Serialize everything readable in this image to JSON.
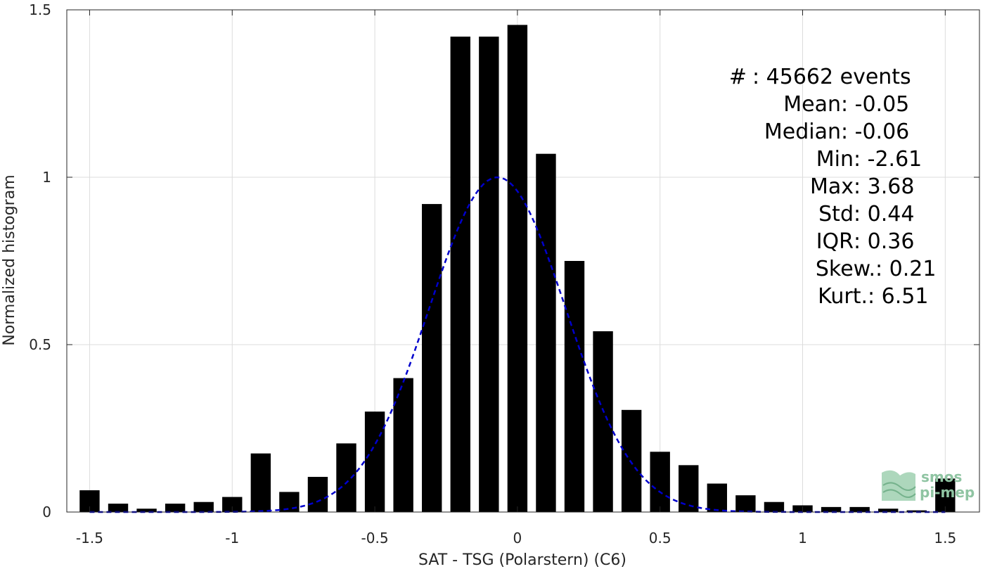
{
  "chart_data": {
    "type": "bar",
    "xlabel": "SAT - TSG (Polarstern) (C6)",
    "ylabel": "Normalized histogram",
    "xlim": [
      -1.58,
      1.62
    ],
    "ylim": [
      0,
      1.5
    ],
    "xticks": [
      -1.5,
      -1,
      -0.5,
      0,
      0.5,
      1,
      1.5
    ],
    "xtick_labels": [
      "-1.5",
      "-1",
      "-0.5",
      "0",
      "0.5",
      "1",
      "1.5"
    ],
    "yticks": [
      0,
      0.5,
      1,
      1.5
    ],
    "ytick_labels": [
      "0",
      "0.5",
      "1",
      "1.5"
    ],
    "grid": true,
    "bar_width": 0.07,
    "bar_color": "#000000",
    "x": [
      -1.5,
      -1.4,
      -1.3,
      -1.2,
      -1.1,
      -1.0,
      -0.9,
      -0.8,
      -0.7,
      -0.6,
      -0.5,
      -0.4,
      -0.3,
      -0.2,
      -0.1,
      0.0,
      0.1,
      0.2,
      0.3,
      0.4,
      0.5,
      0.6,
      0.7,
      0.8,
      0.9,
      1.0,
      1.1,
      1.2,
      1.3,
      1.4,
      1.5
    ],
    "values": [
      0.065,
      0.025,
      0.01,
      0.025,
      0.03,
      0.045,
      0.175,
      0.06,
      0.105,
      0.205,
      0.3,
      0.4,
      0.92,
      1.42,
      1.42,
      1.455,
      1.07,
      0.75,
      0.54,
      0.305,
      0.18,
      0.14,
      0.085,
      0.05,
      0.03,
      0.02,
      0.015,
      0.015,
      0.01,
      0.005,
      0.1
    ],
    "fit_curve": {
      "style": "dashed",
      "color": "#0000cc",
      "mean": -0.07,
      "std": 0.24,
      "peak": 1.0,
      "x_range": [
        -1.5,
        1.5
      ]
    },
    "stats": [
      {
        "label": "#  ",
        "value": ": 45662 events"
      },
      {
        "label": "Mean ",
        "value": ": -0.05"
      },
      {
        "label": "Median ",
        "value": ": -0.06"
      },
      {
        "label": "Min ",
        "value": ": -2.61"
      },
      {
        "label": "Max ",
        "value": ": 3.68"
      },
      {
        "label": "Std ",
        "value": ": 0.44"
      },
      {
        "label": "IQR ",
        "value": ": 0.36"
      },
      {
        "label": "Skew. ",
        "value": ": 0.21"
      },
      {
        "label": "Kurt. ",
        "value": ": 6.51"
      }
    ]
  },
  "logo": {
    "line1": "smos",
    "line2": "pi-mep",
    "color": "#8fc4a2"
  }
}
